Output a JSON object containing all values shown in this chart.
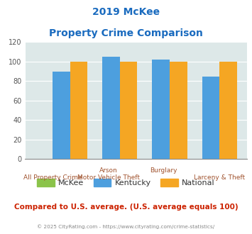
{
  "title_line1": "2019 McKee",
  "title_line2": "Property Crime Comparison",
  "groups": [
    "All Property Crime",
    "Arson / Motor Vehicle Theft",
    "Burglary",
    "Larceny & Theft"
  ],
  "top_labels": [
    "",
    "Arson",
    "Burglary",
    ""
  ],
  "bottom_labels": [
    "All Property Crime",
    "Motor Vehicle Theft",
    "",
    "Larceny & Theft"
  ],
  "mckee_values": [
    0,
    0,
    0,
    0
  ],
  "kentucky_values": [
    90,
    105,
    102,
    85
  ],
  "national_values": [
    100,
    100,
    100,
    100
  ],
  "mckee_color": "#8bc34a",
  "kentucky_color": "#4d9fde",
  "national_color": "#f5a623",
  "ylim": [
    0,
    120
  ],
  "yticks": [
    0,
    20,
    40,
    60,
    80,
    100,
    120
  ],
  "bg_color": "#dde8e8",
  "title_color": "#1a6bbf",
  "xlabel_top_color": "#a0522d",
  "xlabel_bot_color": "#a0522d",
  "footer_text": "Compared to U.S. average. (U.S. average equals 100)",
  "copyright_text": "© 2025 CityRating.com - https://www.cityrating.com/crime-statistics/",
  "bar_width": 0.35,
  "legend_labels": [
    "McKee",
    "Kentucky",
    "National"
  ]
}
